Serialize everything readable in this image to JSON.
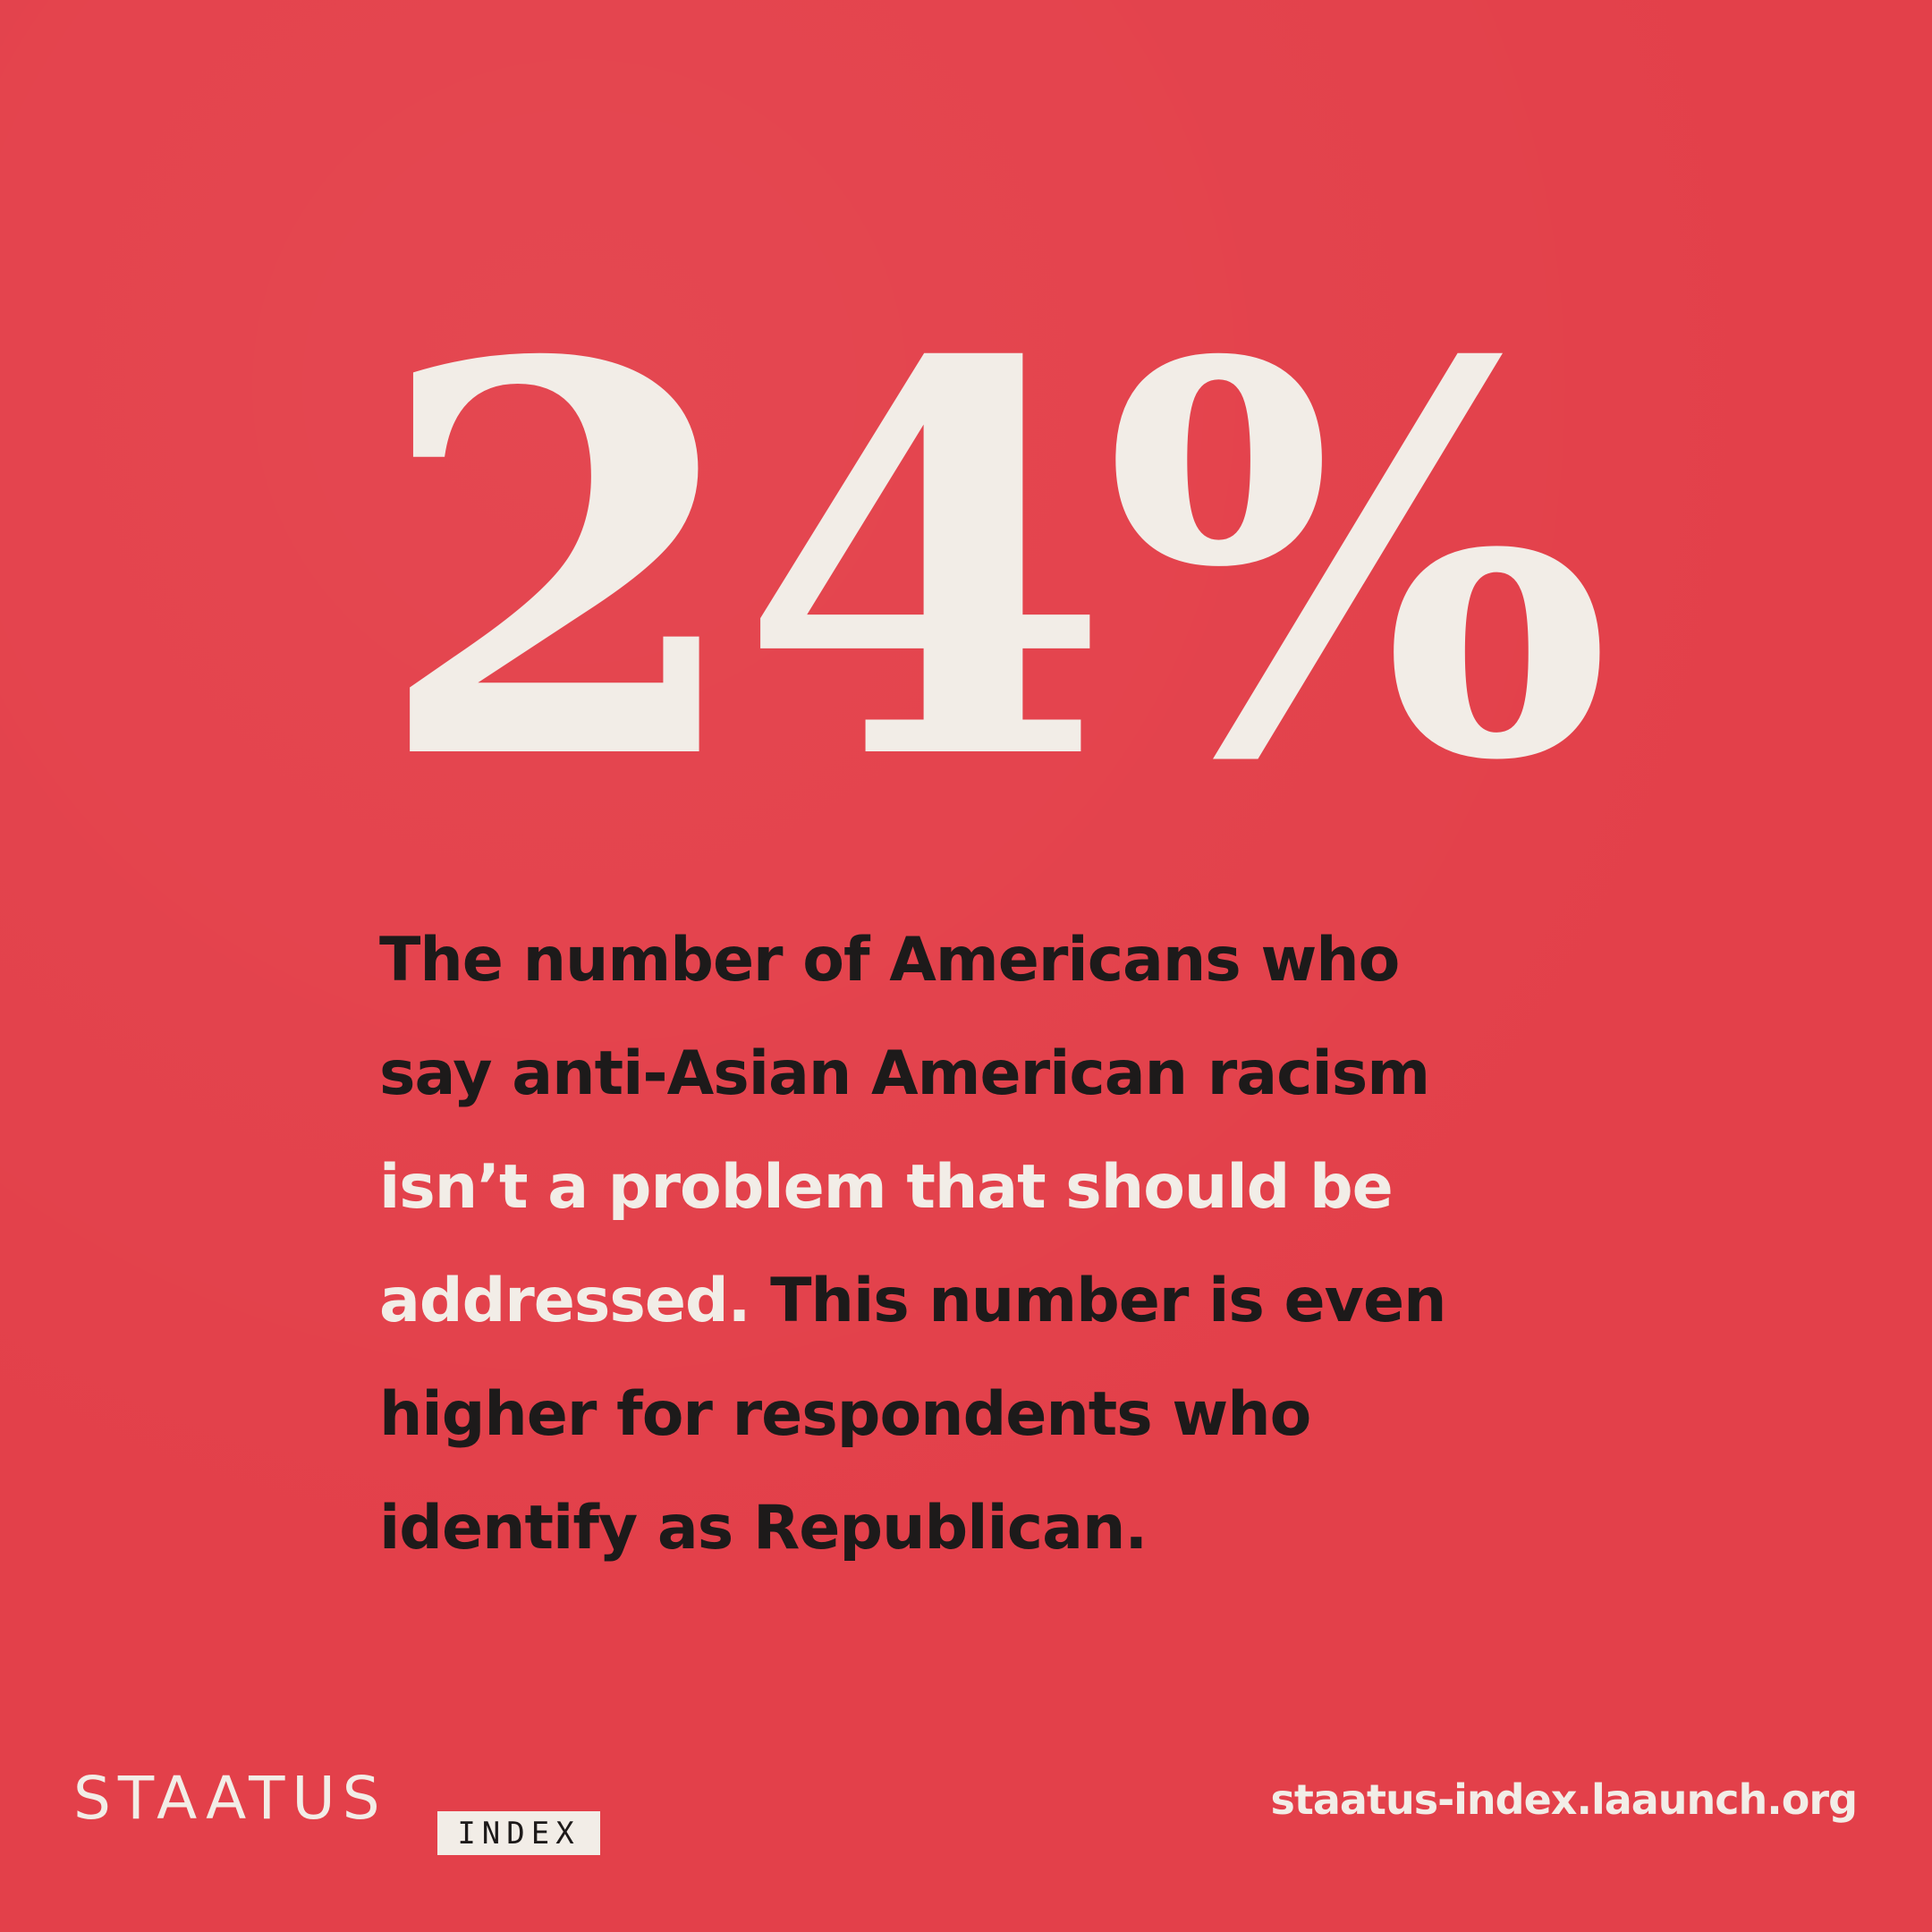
{
  "stat": "24%",
  "body": {
    "lines": [
      [
        {
          "text": "The number of Americans who",
          "color": "#1d1a1a"
        }
      ],
      [
        {
          "text": "say anti-Asian American racism",
          "color": "#1d1a1a"
        }
      ],
      [
        {
          "text": "isn’t a problem that should be",
          "color": "#f2ede7"
        }
      ],
      [
        {
          "text": "addressed.",
          "color": "#f2ede7"
        },
        {
          "text": " This number is even",
          "color": "#1d1a1a"
        }
      ],
      [
        {
          "text": "higher for respondents who",
          "color": "#1d1a1a"
        }
      ],
      [
        {
          "text": "identify as Republican.",
          "color": "#1d1a1a"
        }
      ]
    ]
  },
  "footer": {
    "brand": "STAATUS",
    "brand_tag": "INDEX",
    "url": "staatus-index.laaunch.org"
  }
}
